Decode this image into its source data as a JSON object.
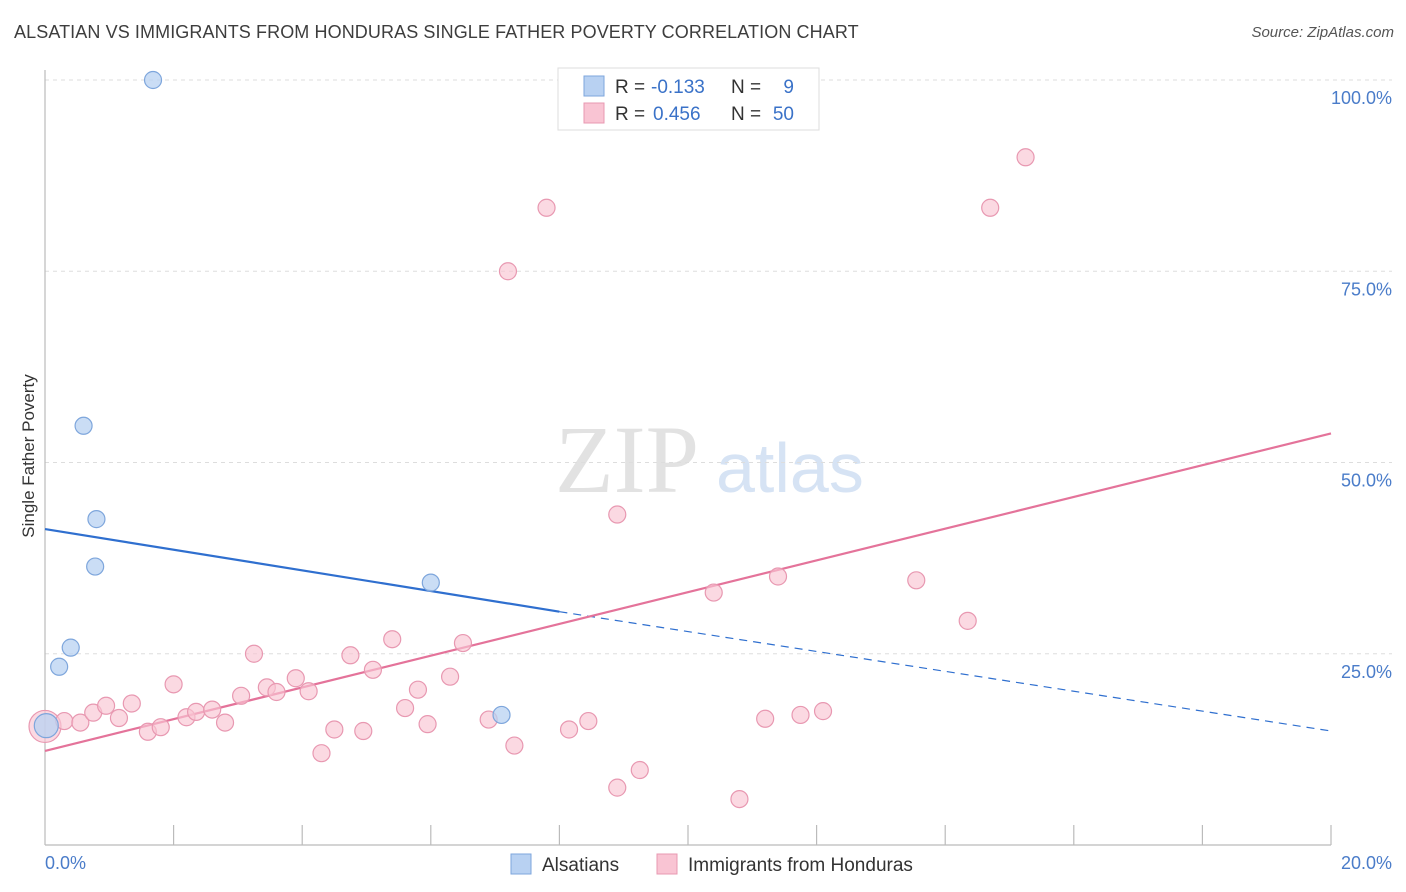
{
  "title": "ALSATIAN VS IMMIGRANTS FROM HONDURAS SINGLE FATHER POVERTY CORRELATION CHART",
  "source": "Source: ZipAtlas.com",
  "watermark": {
    "zip": "ZIP",
    "atlas": "atlas"
  },
  "legend_top": [
    {
      "r_label": "R = ",
      "r_value": "-0.133",
      "n_label": "N = ",
      "n_value": "9"
    },
    {
      "r_label": "R = ",
      "r_value": "0.456",
      "n_label": "N = ",
      "n_value": "50"
    }
  ],
  "colors": {
    "blue_fill": "#b8d1f2",
    "blue_stroke": "#7ea6dc",
    "blue_line": "#2f6fcf",
    "pink_fill": "#f9c4d3",
    "pink_stroke": "#e898b1",
    "pink_line": "#e4739a",
    "tick_text": "#4a7cc9",
    "grid": "#dddddd"
  },
  "chart_data": {
    "type": "scatter",
    "title": "ALSATIAN VS IMMIGRANTS FROM HONDURAS SINGLE FATHER POVERTY CORRELATION CHART",
    "xlabel": "",
    "ylabel": "Single Father Poverty",
    "xlim": [
      0,
      20
    ],
    "ylim": [
      0,
      105
    ],
    "x_tick_labels": [
      "0.0%",
      "20.0%"
    ],
    "y_tick_values": [
      25,
      50,
      75,
      100
    ],
    "y_tick_labels": [
      "25.0%",
      "50.0%",
      "75.0%",
      "100.0%"
    ],
    "grid": true,
    "legend_position": "top-center",
    "series": [
      {
        "name": "Alsatians",
        "color": "#b8d1f2",
        "points": [
          [
            1.68,
            100.0
          ],
          [
            0.6,
            54.8
          ],
          [
            0.8,
            42.6
          ],
          [
            0.78,
            36.4
          ],
          [
            0.4,
            25.8
          ],
          [
            0.22,
            23.3
          ],
          [
            6.0,
            34.3
          ],
          [
            7.1,
            17.0
          ],
          [
            0.02,
            15.6
          ]
        ],
        "trend": {
          "x": [
            0,
            8.0
          ],
          "y": [
            41.3,
            30.5
          ],
          "dashed_to": [
            20.0,
            14.9
          ]
        }
      },
      {
        "name": "Immigrants from Honduras",
        "color": "#f9c4d3",
        "points": [
          [
            0.0,
            15.5
          ],
          [
            0.3,
            16.2
          ],
          [
            0.55,
            16.0
          ],
          [
            0.75,
            17.3
          ],
          [
            0.95,
            18.2
          ],
          [
            1.15,
            16.6
          ],
          [
            1.35,
            18.5
          ],
          [
            1.6,
            14.8
          ],
          [
            1.8,
            15.4
          ],
          [
            2.0,
            21.0
          ],
          [
            2.2,
            16.7
          ],
          [
            2.35,
            17.4
          ],
          [
            2.6,
            17.7
          ],
          [
            2.8,
            16.0
          ],
          [
            3.05,
            19.5
          ],
          [
            3.25,
            25.0
          ],
          [
            3.45,
            20.6
          ],
          [
            3.6,
            20.0
          ],
          [
            3.9,
            21.8
          ],
          [
            4.1,
            20.1
          ],
          [
            4.3,
            12.0
          ],
          [
            4.5,
            15.1
          ],
          [
            4.75,
            24.8
          ],
          [
            4.95,
            14.9
          ],
          [
            5.1,
            22.9
          ],
          [
            5.4,
            26.9
          ],
          [
            5.6,
            17.9
          ],
          [
            5.8,
            20.3
          ],
          [
            5.95,
            15.8
          ],
          [
            6.3,
            22.0
          ],
          [
            6.5,
            26.4
          ],
          [
            6.9,
            16.4
          ],
          [
            7.2,
            75.0
          ],
          [
            7.3,
            13.0
          ],
          [
            7.8,
            83.3
          ],
          [
            8.15,
            15.1
          ],
          [
            8.45,
            16.2
          ],
          [
            8.9,
            7.5
          ],
          [
            8.9,
            43.2
          ],
          [
            9.25,
            9.8
          ],
          [
            10.4,
            33.0
          ],
          [
            10.8,
            6.0
          ],
          [
            11.2,
            16.5
          ],
          [
            11.4,
            35.1
          ],
          [
            11.75,
            17.0
          ],
          [
            12.1,
            17.5
          ],
          [
            13.55,
            34.6
          ],
          [
            14.35,
            29.3
          ],
          [
            14.7,
            83.3
          ],
          [
            15.25,
            89.9
          ]
        ],
        "trend": {
          "x": [
            0,
            20.0
          ],
          "y": [
            12.3,
            53.8
          ]
        }
      }
    ]
  },
  "bottom_legend": [
    "Alsatians",
    "Immigrants from Honduras"
  ]
}
